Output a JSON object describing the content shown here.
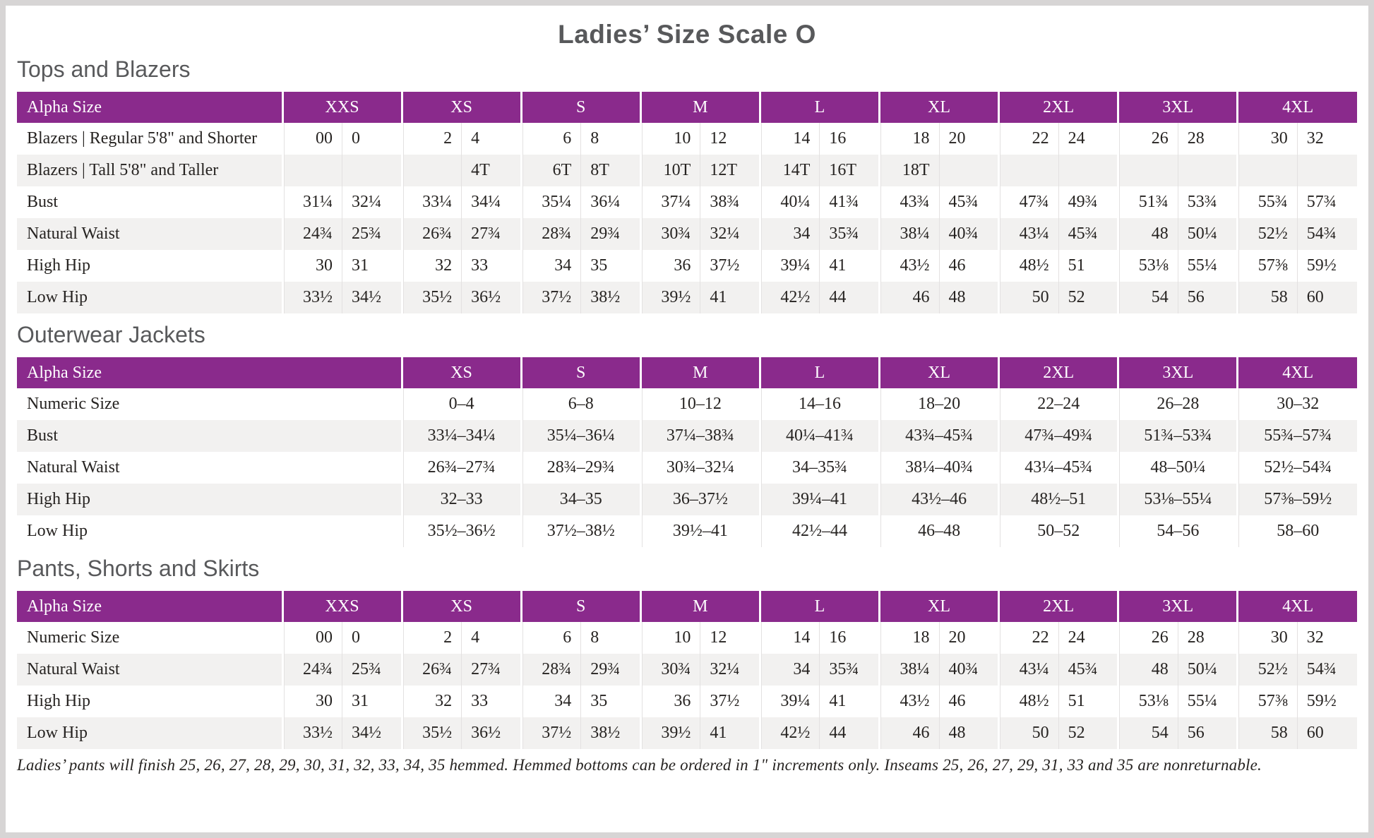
{
  "page": {
    "title": "Ladies’ Size Scale O",
    "footnote": "Ladies’ pants will finish 25, 26, 27, 28, 29, 30, 31, 32, 33, 34, 35 hemmed. Hemmed bottoms can be ordered in 1\" increments only. Inseams 25, 26, 27, 29, 31, 33 and 35 are nonreturnable."
  },
  "colors": {
    "header_bar": "#8a2a8c",
    "row_stripe": "#f2f1f0",
    "heading_text": "#58595b",
    "body_text": "#262321"
  },
  "tables": [
    {
      "id": "tops-and-blazers",
      "heading": "Tops and Blazers",
      "corner_label": "Alpha Size",
      "layout": "paired",
      "groups": [
        "XXS",
        "XS",
        "S",
        "M",
        "L",
        "XL",
        "2XL",
        "3XL",
        "4XL"
      ],
      "rows": [
        {
          "label": "Blazers | Regular 5'8\" and Shorter",
          "values": [
            "00",
            "0",
            "2",
            "4",
            "6",
            "8",
            "10",
            "12",
            "14",
            "16",
            "18",
            "20",
            "22",
            "24",
            "26",
            "28",
            "30",
            "32"
          ]
        },
        {
          "label": "Blazers | Tall 5'8\" and Taller",
          "values": [
            "",
            "",
            "",
            "4T",
            "6T",
            "8T",
            "10T",
            "12T",
            "14T",
            "16T",
            "18T",
            "",
            "",
            "",
            "",
            "",
            "",
            ""
          ]
        },
        {
          "label": "Bust",
          "values": [
            "31¼",
            "32¼",
            "33¼",
            "34¼",
            "35¼",
            "36¼",
            "37¼",
            "38¾",
            "40¼",
            "41¾",
            "43¾",
            "45¾",
            "47¾",
            "49¾",
            "51¾",
            "53¾",
            "55¾",
            "57¾"
          ]
        },
        {
          "label": "Natural Waist",
          "values": [
            "24¾",
            "25¾",
            "26¾",
            "27¾",
            "28¾",
            "29¾",
            "30¾",
            "32¼",
            "34",
            "35¾",
            "38¼",
            "40¾",
            "43¼",
            "45¾",
            "48",
            "50¼",
            "52½",
            "54¾"
          ]
        },
        {
          "label": "High Hip",
          "values": [
            "30",
            "31",
            "32",
            "33",
            "34",
            "35",
            "36",
            "37½",
            "39¼",
            "41",
            "43½",
            "46",
            "48½",
            "51",
            "53⅛",
            "55¼",
            "57⅜",
            "59½"
          ]
        },
        {
          "label": "Low Hip",
          "values": [
            "33½",
            "34½",
            "35½",
            "36½",
            "37½",
            "38½",
            "39½",
            "41",
            "42½",
            "44",
            "46",
            "48",
            "50",
            "52",
            "54",
            "56",
            "58",
            "60"
          ]
        }
      ]
    },
    {
      "id": "outerwear-jackets",
      "heading": "Outerwear Jackets",
      "corner_label": "Alpha Size",
      "layout": "single",
      "groups": [
        "XS",
        "S",
        "M",
        "L",
        "XL",
        "2XL",
        "3XL",
        "4XL"
      ],
      "rows": [
        {
          "label": "Numeric Size",
          "values": [
            "0–4",
            "6–8",
            "10–12",
            "14–16",
            "18–20",
            "22–24",
            "26–28",
            "30–32"
          ]
        },
        {
          "label": "Bust",
          "values": [
            "33¼–34¼",
            "35¼–36¼",
            "37¼–38¾",
            "40¼–41¾",
            "43¾–45¾",
            "47¾–49¾",
            "51¾–53¾",
            "55¾–57¾"
          ]
        },
        {
          "label": "Natural Waist",
          "values": [
            "26¾–27¾",
            "28¾–29¾",
            "30¾–32¼",
            "34–35¾",
            "38¼–40¾",
            "43¼–45¾",
            "48–50¼",
            "52½–54¾"
          ]
        },
        {
          "label": "High Hip",
          "values": [
            "32–33",
            "34–35",
            "36–37½",
            "39¼–41",
            "43½–46",
            "48½–51",
            "53⅛–55¼",
            "57⅜–59½"
          ]
        },
        {
          "label": "Low Hip",
          "values": [
            "35½–36½",
            "37½–38½",
            "39½–41",
            "42½–44",
            "46–48",
            "50–52",
            "54–56",
            "58–60"
          ]
        }
      ]
    },
    {
      "id": "pants-shorts-skirts",
      "heading": "Pants, Shorts and Skirts",
      "corner_label": "Alpha Size",
      "layout": "paired",
      "groups": [
        "XXS",
        "XS",
        "S",
        "M",
        "L",
        "XL",
        "2XL",
        "3XL",
        "4XL"
      ],
      "rows": [
        {
          "label": "Numeric Size",
          "values": [
            "00",
            "0",
            "2",
            "4",
            "6",
            "8",
            "10",
            "12",
            "14",
            "16",
            "18",
            "20",
            "22",
            "24",
            "26",
            "28",
            "30",
            "32"
          ]
        },
        {
          "label": "Natural Waist",
          "values": [
            "24¾",
            "25¾",
            "26¾",
            "27¾",
            "28¾",
            "29¾",
            "30¾",
            "32¼",
            "34",
            "35¾",
            "38¼",
            "40¾",
            "43¼",
            "45¾",
            "48",
            "50¼",
            "52½",
            "54¾"
          ]
        },
        {
          "label": "High Hip",
          "values": [
            "30",
            "31",
            "32",
            "33",
            "34",
            "35",
            "36",
            "37½",
            "39¼",
            "41",
            "43½",
            "46",
            "48½",
            "51",
            "53⅛",
            "55¼",
            "57⅜",
            "59½"
          ]
        },
        {
          "label": "Low Hip",
          "values": [
            "33½",
            "34½",
            "35½",
            "36½",
            "37½",
            "38½",
            "39½",
            "41",
            "42½",
            "44",
            "46",
            "48",
            "50",
            "52",
            "54",
            "56",
            "58",
            "60"
          ]
        }
      ]
    }
  ]
}
